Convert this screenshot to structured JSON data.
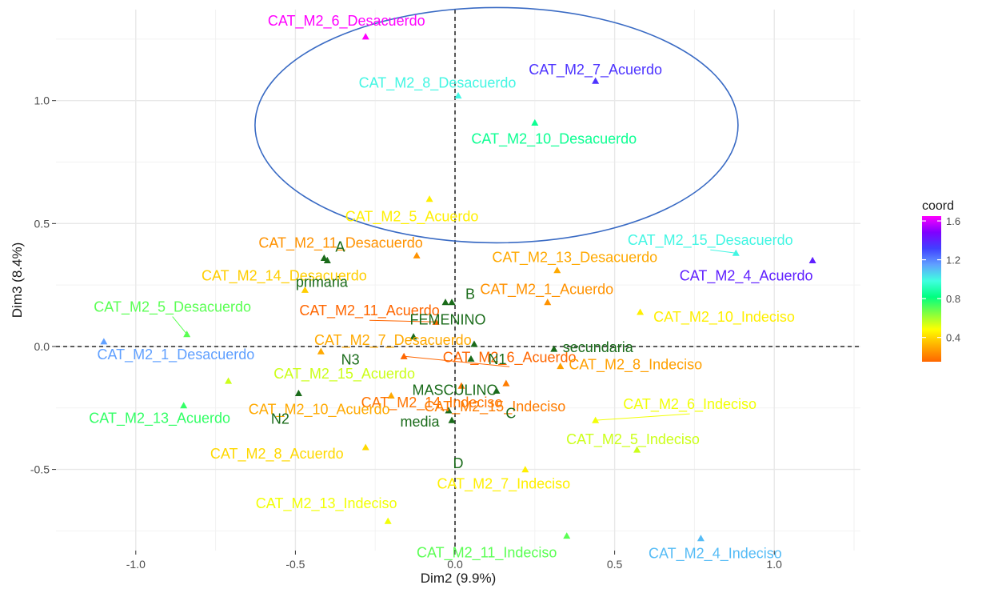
{
  "chart_data": {
    "type": "scatter",
    "xlabel": "Dim2 (9.9%)",
    "ylabel": "Dim3 (8.4%)",
    "xlim": [
      -1.25,
      1.27
    ],
    "ylim": [
      -0.83,
      1.37
    ],
    "x_ticks": [
      -1.0,
      -0.5,
      0.0,
      0.5,
      1.0
    ],
    "x_tick_labels": [
      "-1.0",
      "-0.5",
      "0.0",
      "0.5",
      "1.0"
    ],
    "y_ticks": [
      -0.5,
      0.0,
      0.5,
      1.0
    ],
    "y_tick_labels": [
      "-0.5",
      "0.0",
      "0.5",
      "1.0"
    ],
    "grid": true,
    "reference_lines": {
      "x": 0,
      "y": 0,
      "style": "dashed"
    },
    "legend": {
      "title": "coord",
      "position": "right",
      "ticks": [
        0.4,
        0.8,
        1.2,
        1.6
      ],
      "tick_labels": [
        "0.4",
        "0.8",
        "1.2",
        "1.6"
      ],
      "range": [
        0.15,
        1.65
      ],
      "gradient": [
        "#ff6600",
        "#ffb000",
        "#ffff00",
        "#80ff40",
        "#00ff80",
        "#40ffe0",
        "#60a0ff",
        "#4040ff",
        "#8000ff",
        "#ff00ff"
      ]
    },
    "supplementary_color": "#1a6b1a",
    "active_points": [
      {
        "label": "CAT_M2_6_Desacuerdo",
        "x": -0.28,
        "y": 1.26,
        "coord": 1.65
      },
      {
        "label": "CAT_M2_7_Acuerdo",
        "x": 0.44,
        "y": 1.08,
        "coord": 1.35
      },
      {
        "label": "CAT_M2_8_Desacuerdo",
        "x": 0.01,
        "y": 1.02,
        "coord": 1.0
      },
      {
        "label": "CAT_M2_10_Desacuerdo",
        "x": 0.25,
        "y": 0.91,
        "coord": 0.85
      },
      {
        "label": "CAT_M2_5_Acuerdo",
        "x": -0.08,
        "y": 0.6,
        "coord": 0.45
      },
      {
        "label": "CAT_M2_15_Desacuerdo",
        "x": 0.88,
        "y": 0.38,
        "coord": 1.0
      },
      {
        "label": "CAT_M2_4_Acuerdo",
        "x": 1.12,
        "y": 0.35,
        "coord": 1.4
      },
      {
        "label": "CAT_M2_11_Desacuerdo",
        "x": -0.12,
        "y": 0.37,
        "coord": 0.25
      },
      {
        "label": "CAT_M2_13_Desacuerdo",
        "x": 0.32,
        "y": 0.31,
        "coord": 0.3
      },
      {
        "label": "CAT_M2_14_Desacuerdo",
        "x": -0.47,
        "y": 0.23,
        "coord": 0.38
      },
      {
        "label": "CAT_M2_1_Acuerdo",
        "x": 0.29,
        "y": 0.18,
        "coord": 0.25
      },
      {
        "label": "CAT_M2_11_Acuerdo",
        "x": -0.06,
        "y": 0.1,
        "coord": 0.12
      },
      {
        "label": "CAT_M2_5_Desacuerdo",
        "x": -0.84,
        "y": 0.05,
        "coord": 0.7
      },
      {
        "label": "CAT_M2_10_Indeciso",
        "x": 0.58,
        "y": 0.14,
        "coord": 0.45
      },
      {
        "label": "CAT_M2_1_Desacuerdo",
        "x": -1.1,
        "y": 0.02,
        "coord": 1.15
      },
      {
        "label": "CAT_M2_7_Desacuerdo",
        "x": -0.42,
        "y": -0.02,
        "coord": 0.3
      },
      {
        "label": "CAT_M2_6_Acuerdo",
        "x": -0.16,
        "y": -0.04,
        "coord": 0.12
      },
      {
        "label": "CAT_M2_8_Indeciso",
        "x": 0.33,
        "y": -0.08,
        "coord": 0.28
      },
      {
        "label": "CAT_M2_14_Indeciso",
        "x": 0.02,
        "y": -0.16,
        "coord": 0.18
      },
      {
        "label": "CAT_M2_15_Acuerdo",
        "x": -0.71,
        "y": -0.14,
        "coord": 0.55
      },
      {
        "label": "CAT_M2_15_Indeciso",
        "x": 0.16,
        "y": -0.15,
        "coord": 0.2
      },
      {
        "label": "CAT_M2_10_Acuerdo",
        "x": -0.2,
        "y": -0.2,
        "coord": 0.3
      },
      {
        "label": "CAT_M2_6_Indeciso",
        "x": 0.44,
        "y": -0.3,
        "coord": 0.5
      },
      {
        "label": "CAT_M2_13_Acuerdo",
        "x": -0.85,
        "y": -0.24,
        "coord": 0.75
      },
      {
        "label": "CAT_M2_5_Indeciso",
        "x": 0.57,
        "y": -0.42,
        "coord": 0.55
      },
      {
        "label": "CAT_M2_8_Acuerdo",
        "x": -0.28,
        "y": -0.41,
        "coord": 0.4
      },
      {
        "label": "CAT_M2_7_Indeciso",
        "x": 0.22,
        "y": -0.5,
        "coord": 0.45
      },
      {
        "label": "CAT_M2_13_Indeciso",
        "x": -0.21,
        "y": -0.71,
        "coord": 0.5
      },
      {
        "label": "CAT_M2_11_Indeciso",
        "x": 0.35,
        "y": -0.77,
        "coord": 0.7
      },
      {
        "label": "CAT_M2_4_Indeciso",
        "x": 0.77,
        "y": -0.78,
        "coord": 1.1
      }
    ],
    "supplementary_points": [
      {
        "label": "A",
        "x": -0.41,
        "y": 0.36
      },
      {
        "label": "primaria",
        "x": -0.4,
        "y": 0.35
      },
      {
        "label": "B",
        "x": -0.03,
        "y": 0.18
      },
      {
        "label": "FEMENINO",
        "x": -0.01,
        "y": 0.18
      },
      {
        "label": "N3",
        "x": -0.13,
        "y": 0.04
      },
      {
        "label": "N1",
        "x": 0.06,
        "y": 0.01
      },
      {
        "label": "secundaria",
        "x": 0.31,
        "y": -0.01
      },
      {
        "label": "MASCULINO",
        "x": 0.05,
        "y": -0.05
      },
      {
        "label": "C",
        "x": 0.13,
        "y": -0.18
      },
      {
        "label": "N2",
        "x": -0.49,
        "y": -0.19
      },
      {
        "label": "media",
        "x": -0.02,
        "y": -0.26
      },
      {
        "label": "D",
        "x": -0.01,
        "y": -0.3
      }
    ]
  }
}
